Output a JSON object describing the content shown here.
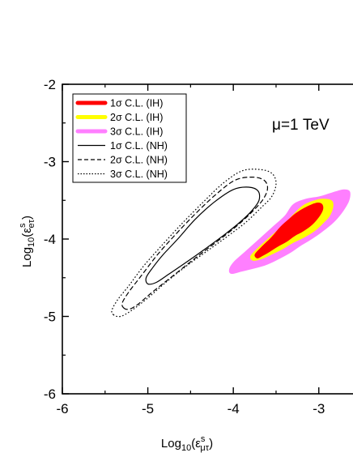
{
  "chart_data": {
    "type": "contour",
    "xlabel": "Log10(εμτs)",
    "ylabel": "Log10(εeτs)",
    "xlabel_parts": {
      "main": "Log",
      "base": "10",
      "open": "(",
      "eps": "ε",
      "sup": "s",
      "sub": "μτ",
      "close": ")"
    },
    "ylabel_parts": {
      "main": "Log",
      "base": "10",
      "open": "(",
      "eps": "ε",
      "sup": "s",
      "sub": "eτ",
      "close": ")"
    },
    "xlim": [
      -6,
      -2.6
    ],
    "ylim": [
      -6,
      -2
    ],
    "x_ticks": [
      -6,
      -5,
      -4,
      -3
    ],
    "x_tick_labels": [
      "-6",
      "-5",
      "-4",
      "-3"
    ],
    "y_ticks": [
      -6,
      -5,
      -4,
      -3,
      -2
    ],
    "y_tick_labels": [
      "-6",
      "-5",
      "-4",
      "-3",
      "-2"
    ],
    "grid": false,
    "legend_position": "top-left",
    "annotation": "μ=1 TeV",
    "legend": [
      {
        "label": "1σ C.L. (IH)",
        "color": "#ff0000",
        "style": "thick"
      },
      {
        "label": "2σ C.L. (IH)",
        "color": "#ffff00",
        "style": "thick"
      },
      {
        "label": "3σ C.L. (IH)",
        "color": "#ff7fff",
        "style": "thick"
      },
      {
        "label": "1σ C.L. (NH)",
        "color": "#000000",
        "style": "solid"
      },
      {
        "label": "2σ C.L. (NH)",
        "color": "#000000",
        "style": "dashed"
      },
      {
        "label": "3σ C.L. (NH)",
        "color": "#000000",
        "style": "dotted"
      }
    ],
    "regions": [
      {
        "name": "3σ C.L. (IH)",
        "kind": "filled",
        "color": "#ff7fff",
        "points": [
          [
            -4.02,
            -4.45
          ],
          [
            -4.05,
            -4.4
          ],
          [
            -4.0,
            -4.3
          ],
          [
            -3.85,
            -4.15
          ],
          [
            -3.7,
            -4.0
          ],
          [
            -3.55,
            -3.85
          ],
          [
            -3.4,
            -3.7
          ],
          [
            -3.3,
            -3.55
          ],
          [
            -3.15,
            -3.48
          ],
          [
            -3.0,
            -3.45
          ],
          [
            -2.85,
            -3.4
          ],
          [
            -2.72,
            -3.36
          ],
          [
            -2.65,
            -3.37
          ],
          [
            -2.63,
            -3.42
          ],
          [
            -2.65,
            -3.52
          ],
          [
            -2.72,
            -3.65
          ],
          [
            -2.82,
            -3.78
          ],
          [
            -2.95,
            -3.9
          ],
          [
            -3.08,
            -4.0
          ],
          [
            -3.2,
            -4.08
          ],
          [
            -3.32,
            -4.17
          ],
          [
            -3.45,
            -4.25
          ],
          [
            -3.6,
            -4.33
          ],
          [
            -3.75,
            -4.38
          ],
          [
            -3.9,
            -4.42
          ]
        ]
      },
      {
        "name": "2σ C.L. (IH)",
        "kind": "filled",
        "color": "#ffff00",
        "points": [
          [
            -3.77,
            -4.28
          ],
          [
            -3.8,
            -4.22
          ],
          [
            -3.7,
            -4.1
          ],
          [
            -3.55,
            -3.95
          ],
          [
            -3.4,
            -3.8
          ],
          [
            -3.28,
            -3.66
          ],
          [
            -3.18,
            -3.56
          ],
          [
            -3.05,
            -3.5
          ],
          [
            -2.95,
            -3.48
          ],
          [
            -2.85,
            -3.5
          ],
          [
            -2.83,
            -3.58
          ],
          [
            -2.87,
            -3.7
          ],
          [
            -2.95,
            -3.8
          ],
          [
            -3.05,
            -3.9
          ],
          [
            -3.17,
            -3.98
          ],
          [
            -3.3,
            -4.05
          ],
          [
            -3.42,
            -4.13
          ],
          [
            -3.55,
            -4.2
          ],
          [
            -3.67,
            -4.26
          ]
        ]
      },
      {
        "name": "1σ C.L. (IH)",
        "kind": "filled",
        "color": "#ff0000",
        "points": [
          [
            -3.72,
            -4.25
          ],
          [
            -3.75,
            -4.2
          ],
          [
            -3.67,
            -4.1
          ],
          [
            -3.55,
            -3.97
          ],
          [
            -3.45,
            -3.84
          ],
          [
            -3.35,
            -3.74
          ],
          [
            -3.25,
            -3.65
          ],
          [
            -3.12,
            -3.57
          ],
          [
            -3.02,
            -3.53
          ],
          [
            -2.96,
            -3.55
          ],
          [
            -2.95,
            -3.62
          ],
          [
            -3.0,
            -3.72
          ],
          [
            -3.08,
            -3.82
          ],
          [
            -3.18,
            -3.9
          ],
          [
            -3.28,
            -3.96
          ],
          [
            -3.38,
            -4.04
          ],
          [
            -3.48,
            -4.1
          ],
          [
            -3.58,
            -4.17
          ],
          [
            -3.66,
            -4.22
          ]
        ]
      },
      {
        "name": "3σ C.L. (NH)",
        "kind": "line",
        "dash": "dotted",
        "color": "#000000",
        "points": [
          [
            -5.4,
            -4.98
          ],
          [
            -5.42,
            -4.92
          ],
          [
            -5.35,
            -4.78
          ],
          [
            -5.22,
            -4.6
          ],
          [
            -5.05,
            -4.35
          ],
          [
            -4.85,
            -4.1
          ],
          [
            -4.6,
            -3.8
          ],
          [
            -4.35,
            -3.52
          ],
          [
            -4.12,
            -3.28
          ],
          [
            -3.9,
            -3.12
          ],
          [
            -3.7,
            -3.1
          ],
          [
            -3.55,
            -3.15
          ],
          [
            -3.5,
            -3.28
          ],
          [
            -3.55,
            -3.45
          ],
          [
            -3.68,
            -3.6
          ],
          [
            -3.85,
            -3.78
          ],
          [
            -4.05,
            -3.95
          ],
          [
            -4.3,
            -4.15
          ],
          [
            -4.55,
            -4.35
          ],
          [
            -4.8,
            -4.57
          ],
          [
            -5.02,
            -4.78
          ],
          [
            -5.2,
            -4.93
          ],
          [
            -5.32,
            -5.0
          ]
        ]
      },
      {
        "name": "2σ C.L. (NH)",
        "kind": "line",
        "dash": "dashed",
        "color": "#000000",
        "points": [
          [
            -5.27,
            -4.9
          ],
          [
            -5.3,
            -4.83
          ],
          [
            -5.22,
            -4.68
          ],
          [
            -5.08,
            -4.48
          ],
          [
            -4.9,
            -4.22
          ],
          [
            -4.7,
            -3.97
          ],
          [
            -4.45,
            -3.68
          ],
          [
            -4.2,
            -3.42
          ],
          [
            -3.98,
            -3.24
          ],
          [
            -3.78,
            -3.2
          ],
          [
            -3.64,
            -3.24
          ],
          [
            -3.6,
            -3.35
          ],
          [
            -3.66,
            -3.5
          ],
          [
            -3.8,
            -3.67
          ],
          [
            -3.98,
            -3.85
          ],
          [
            -4.2,
            -4.04
          ],
          [
            -4.45,
            -4.25
          ],
          [
            -4.7,
            -4.47
          ],
          [
            -4.93,
            -4.67
          ],
          [
            -5.1,
            -4.83
          ],
          [
            -5.2,
            -4.9
          ]
        ]
      },
      {
        "name": "1σ C.L. (NH)",
        "kind": "line",
        "dash": "solid",
        "color": "#000000",
        "points": [
          [
            -5.0,
            -4.58
          ],
          [
            -5.02,
            -4.5
          ],
          [
            -4.95,
            -4.38
          ],
          [
            -4.82,
            -4.2
          ],
          [
            -4.65,
            -4.0
          ],
          [
            -4.45,
            -3.75
          ],
          [
            -4.22,
            -3.52
          ],
          [
            -4.0,
            -3.36
          ],
          [
            -3.82,
            -3.33
          ],
          [
            -3.71,
            -3.38
          ],
          [
            -3.7,
            -3.5
          ],
          [
            -3.78,
            -3.63
          ],
          [
            -3.92,
            -3.78
          ],
          [
            -4.1,
            -3.94
          ],
          [
            -4.32,
            -4.12
          ],
          [
            -4.55,
            -4.3
          ],
          [
            -4.75,
            -4.45
          ],
          [
            -4.9,
            -4.56
          ]
        ]
      }
    ]
  }
}
